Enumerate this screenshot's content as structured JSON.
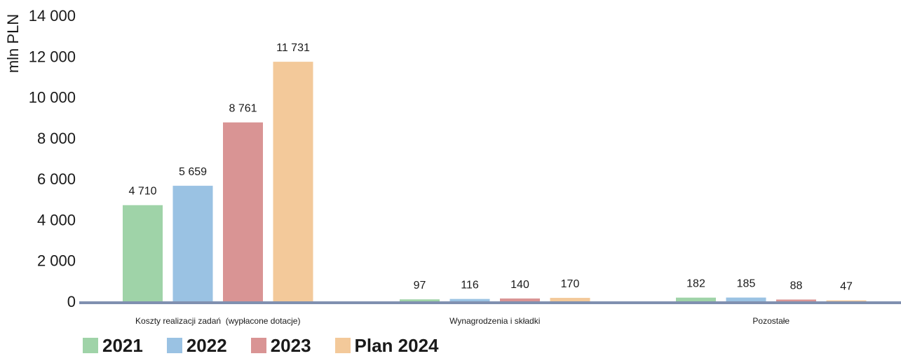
{
  "chart_data": {
    "type": "bar",
    "ylabel": "mln PLN",
    "ylim": [
      0,
      14000
    ],
    "yticks": [
      0,
      2000,
      4000,
      6000,
      8000,
      10000,
      12000,
      14000
    ],
    "ytick_labels": [
      "0",
      "2 000",
      "4 000",
      "6 000",
      "8 000",
      "10 000",
      "12 000",
      "14 000"
    ],
    "grid": false,
    "legend_position": "bottom-left",
    "categories": [
      "Koszty realizacji zadań  (wypłacone dotacje)",
      "Wynagrodzenia i składki",
      "Pozostałe"
    ],
    "series": [
      {
        "name": "2021",
        "color": "#9fd3a8",
        "values": [
          4710,
          97,
          182
        ],
        "value_labels": [
          "4 710",
          "97",
          "182"
        ]
      },
      {
        "name": "2022",
        "color": "#9ac2e3",
        "values": [
          5659,
          116,
          185
        ],
        "value_labels": [
          "5 659",
          "116",
          "185"
        ]
      },
      {
        "name": "2023",
        "color": "#d99494",
        "values": [
          8761,
          140,
          88
        ],
        "value_labels": [
          "8 761",
          "140",
          "88"
        ]
      },
      {
        "name": "Plan 2024",
        "color": "#f3c99a",
        "values": [
          11731,
          170,
          47
        ],
        "value_labels": [
          "11 731",
          "170",
          "47"
        ]
      }
    ],
    "axis_color": "#8090b0"
  }
}
